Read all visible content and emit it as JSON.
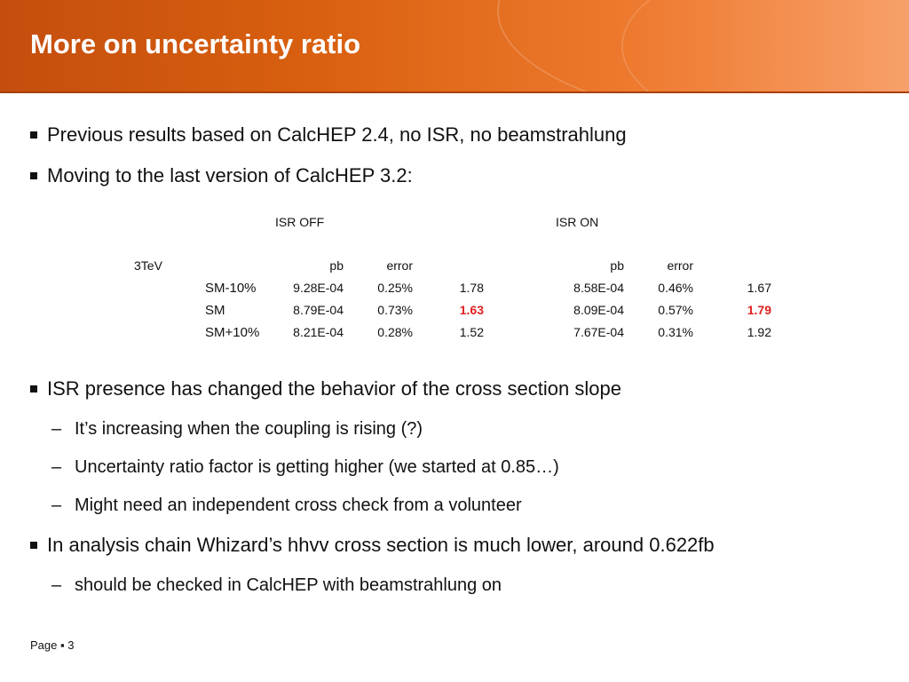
{
  "title": "More on uncertainty ratio",
  "bullets": [
    "Previous results based on CalcHEP 2.4, no ISR, no beamstrahlung",
    "Moving to the last version of CalcHEP 3.2:",
    "ISR presence has changed the behavior of the cross section slope",
    "In analysis chain Whizard’s hhvv cross section is much lower, around 0.622fb"
  ],
  "subbullets": [
    "It’s increasing when the coupling is rising (?)",
    "Uncertainty ratio factor is getting higher (we started at 0.85…)",
    "Might need an independent cross check from a volunteer",
    "should be checked in CalcHEP with beamstrahlung on"
  ],
  "dash": "–",
  "table": {
    "group_headers": [
      "ISR OFF",
      "ISR ON"
    ],
    "energy_label": "3TeV",
    "col_headers": [
      "pb",
      "error",
      "pb",
      "error"
    ],
    "rows": [
      {
        "label": "SM-10%",
        "off_pb": "9.28E-04",
        "off_err": "0.25%",
        "off_ratio": "1.78",
        "on_pb": "8.58E-04",
        "on_err": "0.46%",
        "on_ratio": "1.67"
      },
      {
        "label": "SM",
        "off_pb": "8.79E-04",
        "off_err": "0.73%",
        "off_ratio": "1.63",
        "on_pb": "8.09E-04",
        "on_err": "0.57%",
        "on_ratio": "1.79"
      },
      {
        "label": "SM+10%",
        "off_pb": "8.21E-04",
        "off_err": "0.28%",
        "off_ratio": "1.52",
        "on_pb": "7.67E-04",
        "on_err": "0.31%",
        "on_ratio": "1.92"
      }
    ],
    "highlight_color": "#e02020"
  },
  "footer": {
    "page_label": "Page",
    "separator": "▪",
    "page_number": "3"
  },
  "colors": {
    "header_orange": "#d9600f",
    "title_text": "#ffffff"
  }
}
